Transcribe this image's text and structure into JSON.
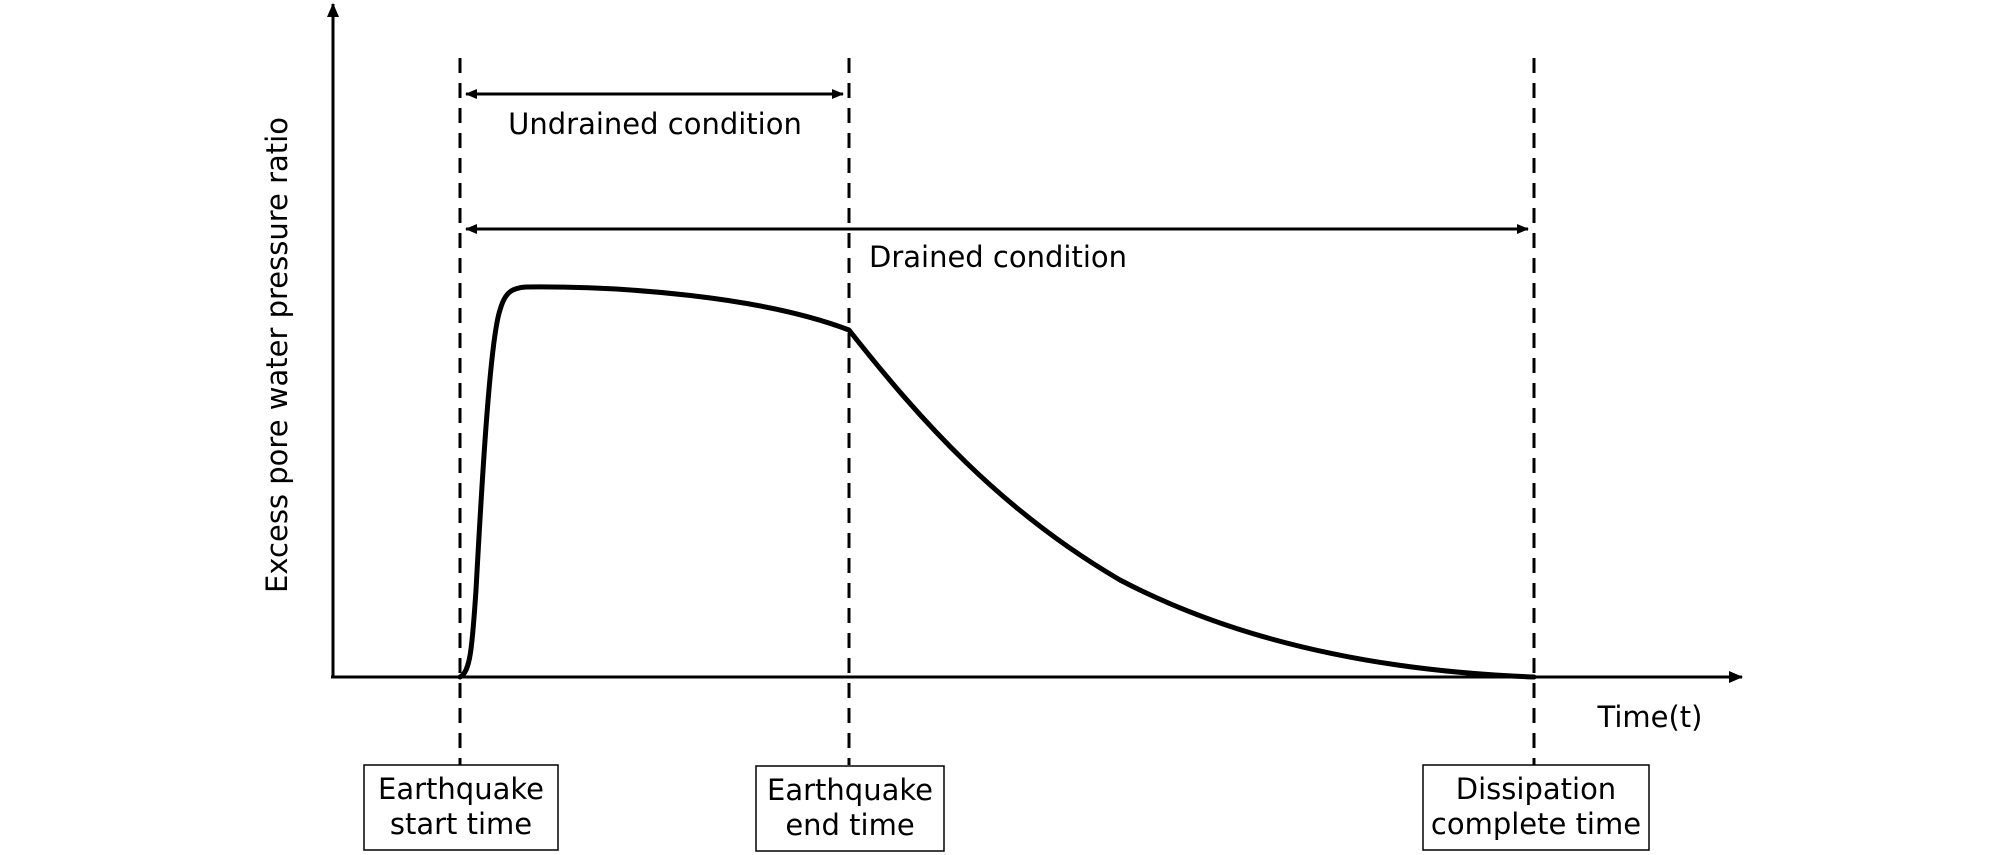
{
  "diagram": {
    "y_axis_label": "Excess pore water pressure ratio",
    "x_axis_label": "Time(t)",
    "undrained_label": "Undrained condition",
    "drained_label": "Drained condition",
    "start_box": {
      "line1": "Earthquake",
      "line2": "start time"
    },
    "end_box": {
      "line1": "Earthquake",
      "line2": "end time"
    },
    "dissipation_box": {
      "line1": "Dissipation",
      "line2": "complete time"
    }
  }
}
